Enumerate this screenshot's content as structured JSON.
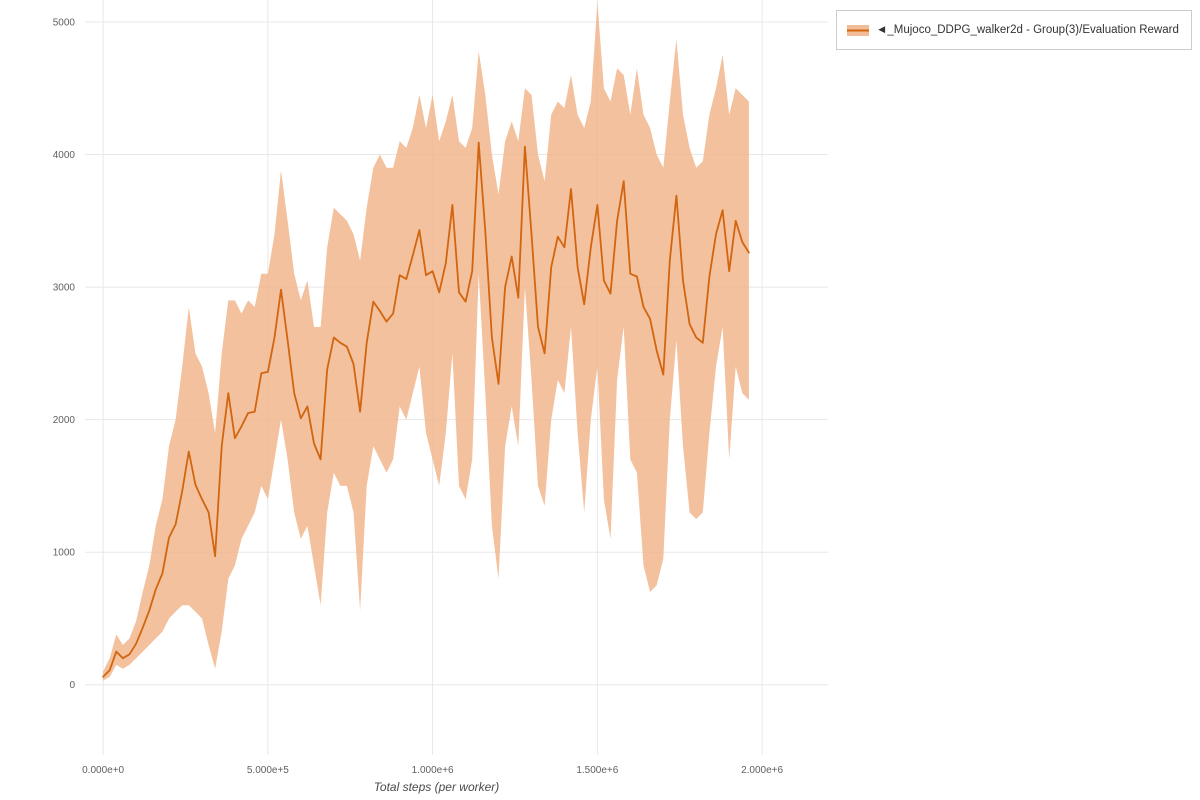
{
  "legend": {
    "label": "◄_Mujoco_DDPG_walker2d - Group(3)/Evaluation Reward"
  },
  "chart_data": {
    "type": "line",
    "title": "",
    "xlabel": "Total steps (per worker)",
    "ylabel": "",
    "legend_position": "top-right",
    "grid": true,
    "xlim": [
      -55000,
      2200000
    ],
    "ylim": [
      -530,
      5166
    ],
    "x_ticks": [
      0,
      500000,
      1000000,
      1500000,
      2000000
    ],
    "x_tick_labels": [
      "0.000e+0",
      "5.000e+5",
      "1.000e+6",
      "1.500e+6",
      "2.000e+6"
    ],
    "y_ticks": [
      0,
      1000,
      2000,
      3000,
      4000,
      5000
    ],
    "y_tick_labels": [
      "0",
      "1000",
      "2000",
      "3000",
      "4000",
      "5000"
    ],
    "colors": {
      "line": "#d2650f",
      "band": "#f0b184",
      "band_opacity": 0.8,
      "grid": "#e8e8e8",
      "tick_text": "#606060",
      "axis_title_text": "#4a4a4a"
    },
    "series": [
      {
        "name": "◄_Mujoco_DDPG_walker2d - Group(3)/Evaluation Reward",
        "x": [
          0,
          20000,
          40000,
          60000,
          80000,
          100000,
          120000,
          140000,
          160000,
          180000,
          200000,
          220000,
          240000,
          260000,
          280000,
          300000,
          320000,
          340000,
          360000,
          380000,
          400000,
          420000,
          440000,
          460000,
          480000,
          500000,
          520000,
          540000,
          560000,
          580000,
          600000,
          620000,
          640000,
          660000,
          680000,
          700000,
          720000,
          740000,
          760000,
          780000,
          800000,
          820000,
          840000,
          860000,
          880000,
          900000,
          920000,
          940000,
          960000,
          980000,
          1000000,
          1020000,
          1040000,
          1060000,
          1080000,
          1100000,
          1120000,
          1140000,
          1160000,
          1180000,
          1200000,
          1220000,
          1240000,
          1260000,
          1280000,
          1300000,
          1320000,
          1340000,
          1360000,
          1380000,
          1400000,
          1420000,
          1440000,
          1460000,
          1480000,
          1500000,
          1520000,
          1540000,
          1560000,
          1580000,
          1600000,
          1620000,
          1640000,
          1660000,
          1680000,
          1700000,
          1720000,
          1740000,
          1760000,
          1780000,
          1800000,
          1820000,
          1840000,
          1860000,
          1880000,
          1900000,
          1920000,
          1940000,
          1960000
        ],
        "mean": [
          60,
          110,
          250,
          200,
          230,
          310,
          430,
          560,
          720,
          840,
          1110,
          1210,
          1460,
          1760,
          1510,
          1400,
          1300,
          970,
          1800,
          2200,
          1860,
          1950,
          2050,
          2060,
          2350,
          2360,
          2620,
          2980,
          2600,
          2200,
          2010,
          2100,
          1820,
          1700,
          2380,
          2620,
          2580,
          2550,
          2420,
          2060,
          2580,
          2890,
          2820,
          2740,
          2800,
          3090,
          3060,
          3240,
          3430,
          3090,
          3120,
          2960,
          3180,
          3620,
          2960,
          2890,
          3120,
          4090,
          3420,
          2620,
          2270,
          3000,
          3230,
          2920,
          4060,
          3400,
          2700,
          2500,
          3150,
          3380,
          3300,
          3740,
          3150,
          2870,
          3300,
          3620,
          3050,
          2950,
          3500,
          3800,
          3100,
          3080,
          2850,
          2760,
          2520,
          2340,
          3200,
          3690,
          3050,
          2720,
          2620,
          2580,
          3080,
          3400,
          3580,
          3120,
          3500,
          3340,
          3260
        ],
        "lower": [
          30,
          60,
          150,
          120,
          150,
          200,
          250,
          300,
          350,
          400,
          500,
          550,
          600,
          600,
          550,
          500,
          300,
          120,
          400,
          800,
          900,
          1100,
          1200,
          1300,
          1500,
          1400,
          1700,
          2000,
          1700,
          1300,
          1100,
          1200,
          900,
          600,
          1300,
          1600,
          1500,
          1500,
          1300,
          560,
          1500,
          1800,
          1700,
          1600,
          1700,
          2100,
          2000,
          2200,
          2400,
          1900,
          1700,
          1500,
          1900,
          2500,
          1500,
          1400,
          1700,
          3100,
          2200,
          1200,
          800,
          1800,
          2100,
          1800,
          3000,
          2300,
          1500,
          1350,
          2000,
          2300,
          2200,
          2700,
          1900,
          1300,
          2000,
          2400,
          1400,
          1100,
          2300,
          2700,
          1700,
          1600,
          900,
          700,
          750,
          950,
          2000,
          2600,
          1800,
          1300,
          1250,
          1300,
          1900,
          2400,
          2700,
          1700,
          2400,
          2200,
          2150
        ],
        "upper": [
          100,
          200,
          380,
          300,
          350,
          480,
          700,
          900,
          1200,
          1400,
          1800,
          2000,
          2400,
          2850,
          2500,
          2400,
          2200,
          1900,
          2500,
          2900,
          2900,
          2800,
          2900,
          2850,
          3100,
          3100,
          3400,
          3880,
          3500,
          3100,
          2900,
          3050,
          2700,
          2700,
          3300,
          3600,
          3550,
          3500,
          3400,
          3200,
          3600,
          3900,
          4000,
          3900,
          3900,
          4100,
          4050,
          4200,
          4450,
          4200,
          4450,
          4100,
          4250,
          4450,
          4100,
          4050,
          4200,
          4780,
          4450,
          4000,
          3700,
          4100,
          4250,
          4100,
          4500,
          4450,
          4000,
          3800,
          4300,
          4400,
          4350,
          4600,
          4300,
          4200,
          4400,
          5150,
          4500,
          4400,
          4650,
          4600,
          4300,
          4650,
          4300,
          4200,
          4000,
          3900,
          4400,
          4870,
          4300,
          4050,
          3900,
          3950,
          4300,
          4500,
          4750,
          4300,
          4500,
          4450,
          4400
        ]
      }
    ]
  }
}
